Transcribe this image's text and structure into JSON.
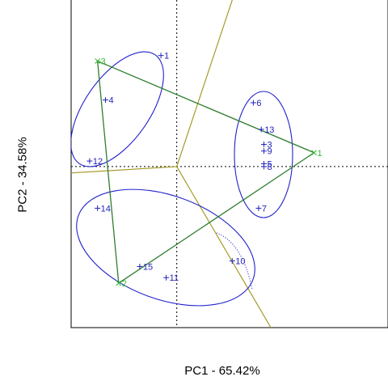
{
  "chart_data": {
    "type": "scatter",
    "xlabel": "PC1 - 65.42%",
    "ylabel": "PC2 - 34.58%",
    "xlim": [
      -2.0,
      4.0
    ],
    "ylim": [
      -2.9,
      3.0
    ],
    "colors": {
      "points": "#2222bb",
      "centroids": "#33bb33",
      "triangle": "#2e7d2e",
      "boundaries": "#a69a2a",
      "ellipses": "#2222cc",
      "reference_lines": "#000000"
    },
    "points": [
      {
        "label": "1",
        "x": -0.3,
        "y": 2.0
      },
      {
        "label": "3",
        "x": 1.65,
        "y": 0.4
      },
      {
        "label": "4",
        "x": -1.35,
        "y": 1.2
      },
      {
        "label": "5",
        "x": 1.65,
        "y": 0.05
      },
      {
        "label": "6",
        "x": 1.45,
        "y": 1.15
      },
      {
        "label": "7",
        "x": 1.55,
        "y": -0.75
      },
      {
        "label": "8",
        "x": 1.65,
        "y": 0.0
      },
      {
        "label": "9",
        "x": 1.65,
        "y": 0.28
      },
      {
        "label": "10",
        "x": 1.05,
        "y": -1.7
      },
      {
        "label": "11",
        "x": -0.2,
        "y": -2.0
      },
      {
        "label": "12",
        "x": -1.65,
        "y": 0.1
      },
      {
        "label": "13",
        "x": 1.6,
        "y": 0.67
      },
      {
        "label": "14",
        "x": -1.5,
        "y": -0.75
      },
      {
        "label": "15",
        "x": -0.7,
        "y": -1.8
      }
    ],
    "centroids": [
      {
        "label": "1",
        "x": 2.6,
        "y": 0.25
      },
      {
        "label": "2",
        "x": -1.1,
        "y": -2.1
      },
      {
        "label": "3",
        "x": -1.5,
        "y": 1.9
      }
    ]
  }
}
